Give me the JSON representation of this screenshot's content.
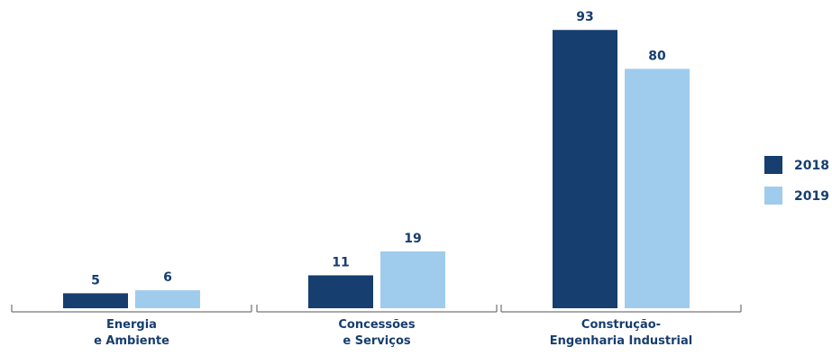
{
  "chart_data": {
    "type": "bar",
    "categories": [
      [
        "Energia",
        "e Ambiente"
      ],
      [
        "Concessões",
        "e Serviços"
      ],
      [
        "Construção-",
        "Engenharia Industrial"
      ]
    ],
    "series": [
      {
        "name": "2018",
        "color": "#163e6f",
        "values": [
          5,
          11,
          93
        ]
      },
      {
        "name": "2019",
        "color": "#9fcced",
        "values": [
          6,
          19,
          80
        ]
      }
    ],
    "ylim": [
      0,
      100
    ],
    "grid": false,
    "legend_position": "right",
    "label_color": "#163e6f",
    "axis_color": "#555555"
  }
}
